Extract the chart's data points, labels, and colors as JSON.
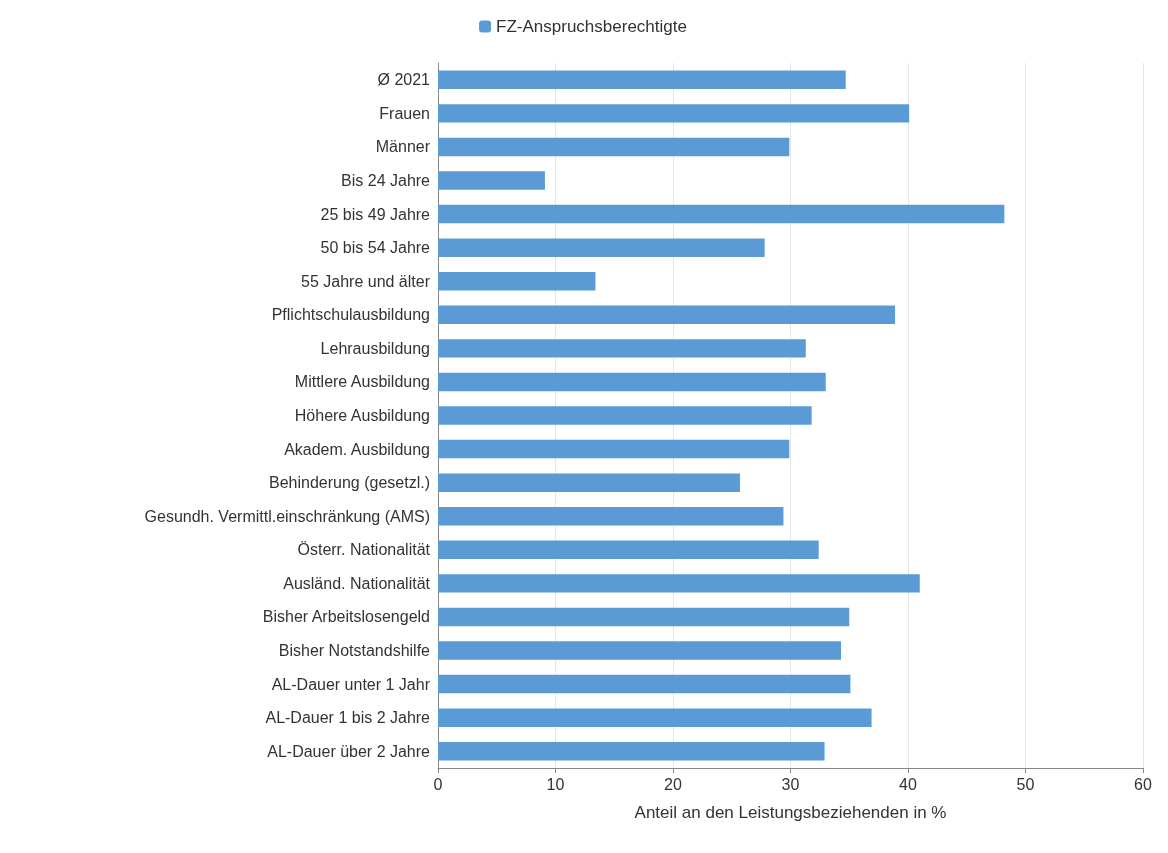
{
  "chart_data": {
    "type": "bar",
    "orientation": "horizontal",
    "xlabel": "Anteil an den Leistungsbeziehenden in %",
    "categories": [
      "Ø 2021",
      "Frauen",
      "Männer",
      "Bis 24 Jahre",
      "25 bis 49 Jahre",
      "50 bis 54 Jahre",
      "55 Jahre und älter",
      "Pflichtschulausbildung",
      "Lehrausbildung",
      "Mittlere Ausbildung",
      "Höhere Ausbildung",
      "Akadem. Ausbildung",
      "Behinderung (gesetzl.)",
      "Gesundh. Vermittl.einschränkung (AMS)",
      "Österr. Nationalität",
      "Ausländ. Nationalität",
      "Bisher Arbeitslosengeld",
      "Bisher Notstandshilfe",
      "AL-Dauer unter 1 Jahr",
      "AL-Dauer 1 bis 2 Jahre",
      "AL-Dauer über 2 Jahre"
    ],
    "series": [
      {
        "name": "FZ-Anspruchsberechtigte",
        "color": "#5b9bd5",
        "values": [
          34.7,
          40.1,
          29.9,
          9.1,
          48.2,
          27.8,
          13.4,
          38.9,
          31.3,
          33.0,
          31.8,
          29.9,
          25.7,
          29.4,
          32.4,
          41.0,
          35.0,
          34.3,
          35.1,
          36.9,
          32.9
        ]
      }
    ],
    "xlim": [
      0,
      60
    ],
    "xticks": [
      0,
      10,
      20,
      30,
      40,
      50,
      60
    ],
    "grid": "x",
    "legend": "top"
  }
}
